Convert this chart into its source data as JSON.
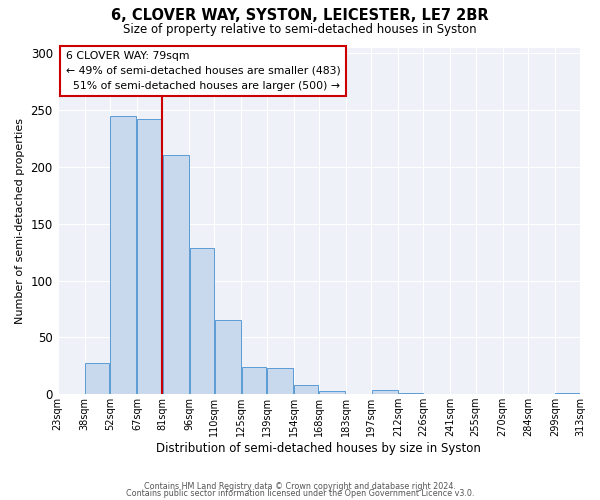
{
  "title": "6, CLOVER WAY, SYSTON, LEICESTER, LE7 2BR",
  "subtitle": "Size of property relative to semi-detached houses in Syston",
  "xlabel": "Distribution of semi-detached houses by size in Syston",
  "ylabel": "Number of semi-detached properties",
  "bar_color": "#c8d9ed",
  "bar_edge_color": "#5b9bd5",
  "grid_color": "#c8d9ed",
  "bg_color": "#eef2f8",
  "annotation_box_color": "#cc0000",
  "vline_color": "#cc0000",
  "footer_line1": "Contains HM Land Registry data © Crown copyright and database right 2024.",
  "footer_line2": "Contains public sector information licensed under the Open Government Licence v3.0.",
  "property_label": "6 CLOVER WAY: 79sqm",
  "pct_smaller": 49,
  "count_smaller": 483,
  "pct_larger": 51,
  "count_larger": 500,
  "bin_edges": [
    23,
    38,
    52,
    67,
    81,
    96,
    110,
    125,
    139,
    154,
    168,
    183,
    197,
    212,
    226,
    241,
    255,
    270,
    284,
    299,
    313
  ],
  "bin_labels": [
    "23sqm",
    "38sqm",
    "52sqm",
    "67sqm",
    "81sqm",
    "96sqm",
    "110sqm",
    "125sqm",
    "139sqm",
    "154sqm",
    "168sqm",
    "183sqm",
    "197sqm",
    "212sqm",
    "226sqm",
    "241sqm",
    "255sqm",
    "270sqm",
    "284sqm",
    "299sqm",
    "313sqm"
  ],
  "counts": [
    0,
    27,
    245,
    242,
    210,
    129,
    65,
    24,
    23,
    8,
    3,
    0,
    4,
    1,
    0,
    0,
    0,
    0,
    0,
    1
  ],
  "vline_x": 81,
  "ylim": [
    0,
    305
  ],
  "yticks": [
    0,
    50,
    100,
    150,
    200,
    250,
    300
  ]
}
